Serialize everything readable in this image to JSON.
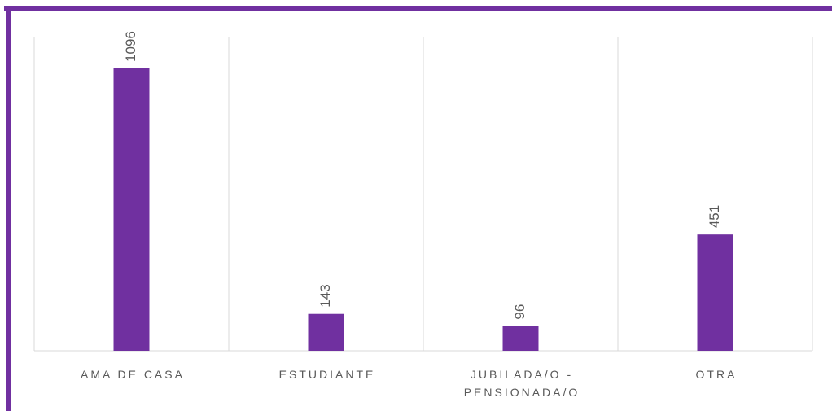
{
  "chart_data": {
    "type": "bar",
    "categories": [
      "AMA DE CASA",
      "ESTUDIANTE",
      "JUBILADA/O - PENSIONADA/O",
      "OTRA"
    ],
    "values": [
      1096,
      143,
      96,
      451
    ],
    "color": "#7030a0",
    "ylim": [
      0,
      1200
    ],
    "category_grid": true
  }
}
